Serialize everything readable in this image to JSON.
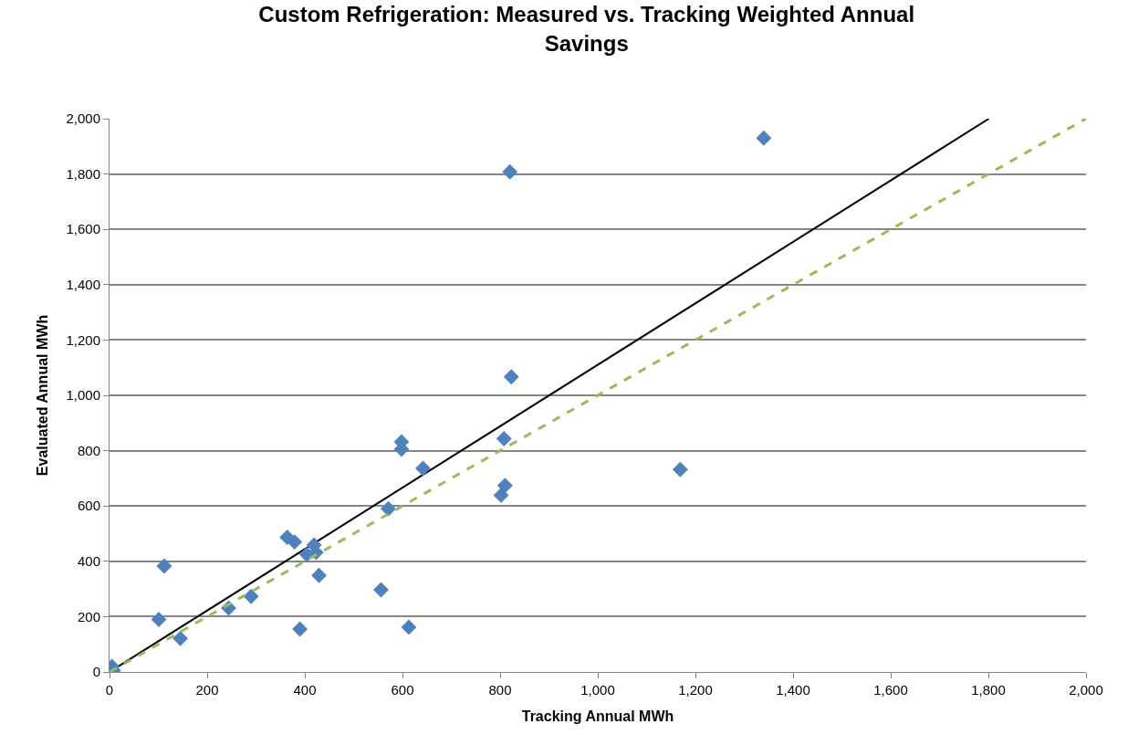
{
  "chart_data": {
    "type": "scatter",
    "title": "Custom Refrigeration: Measured vs. Tracking Weighted Annual Savings",
    "xlabel": "Tracking Annual MWh",
    "ylabel": "Evaluated Annual MWh",
    "xlim": [
      0,
      2000
    ],
    "xticks": [
      0,
      200,
      400,
      600,
      {
        "value": 800,
        "label": "800"
      },
      {
        "value": 1000,
        "label": "1,000"
      },
      {
        "value": 1200,
        "label": "1,200"
      },
      {
        "value": 1400,
        "label": "1,400"
      },
      {
        "value": 1600,
        "label": "1,600"
      },
      {
        "value": 1800,
        "label": "1,800"
      },
      {
        "value": 2000,
        "label": "2,000"
      }
    ],
    "ylim": [
      0,
      2000
    ],
    "yticks": [
      0,
      200,
      400,
      600,
      800,
      {
        "value": 1000,
        "label": "1,000"
      },
      {
        "value": 1200,
        "label": "1,200"
      },
      {
        "value": 1400,
        "label": "1,400"
      },
      {
        "value": 1600,
        "label": "1,600"
      },
      {
        "value": 1800,
        "label": "1,800"
      },
      {
        "value": 2000,
        "label": "2,000"
      }
    ],
    "grid": "y",
    "series": [
      {
        "marker": "diamond",
        "color": "#4f81bd",
        "x": [
          5,
          8,
          101,
          112,
          145,
          244,
          290,
          364,
          379,
          390,
          404,
          419,
          423,
          429,
          556,
          571,
          613,
          598,
          598,
          642,
          802,
          808,
          810,
          823,
          820,
          1169,
          1340
        ],
        "values": [
          20,
          5,
          190,
          383,
          121,
          231,
          273,
          487,
          470,
          155,
          425,
          459,
          432,
          349,
          297,
          590,
          162,
          832,
          805,
          736,
          639,
          843,
          674,
          1067,
          1808,
          732,
          1930
        ]
      },
      {
        "type": "line",
        "marker": "none",
        "line_style": "solid",
        "color": "#000000",
        "x": [
          0,
          1801
        ],
        "values": [
          0,
          2000
        ]
      },
      {
        "type": "line",
        "marker": "none",
        "line_style": "dashed",
        "color": "#9bbb59",
        "x": [
          0,
          2000
        ],
        "values": [
          0,
          2000
        ]
      }
    ]
  }
}
